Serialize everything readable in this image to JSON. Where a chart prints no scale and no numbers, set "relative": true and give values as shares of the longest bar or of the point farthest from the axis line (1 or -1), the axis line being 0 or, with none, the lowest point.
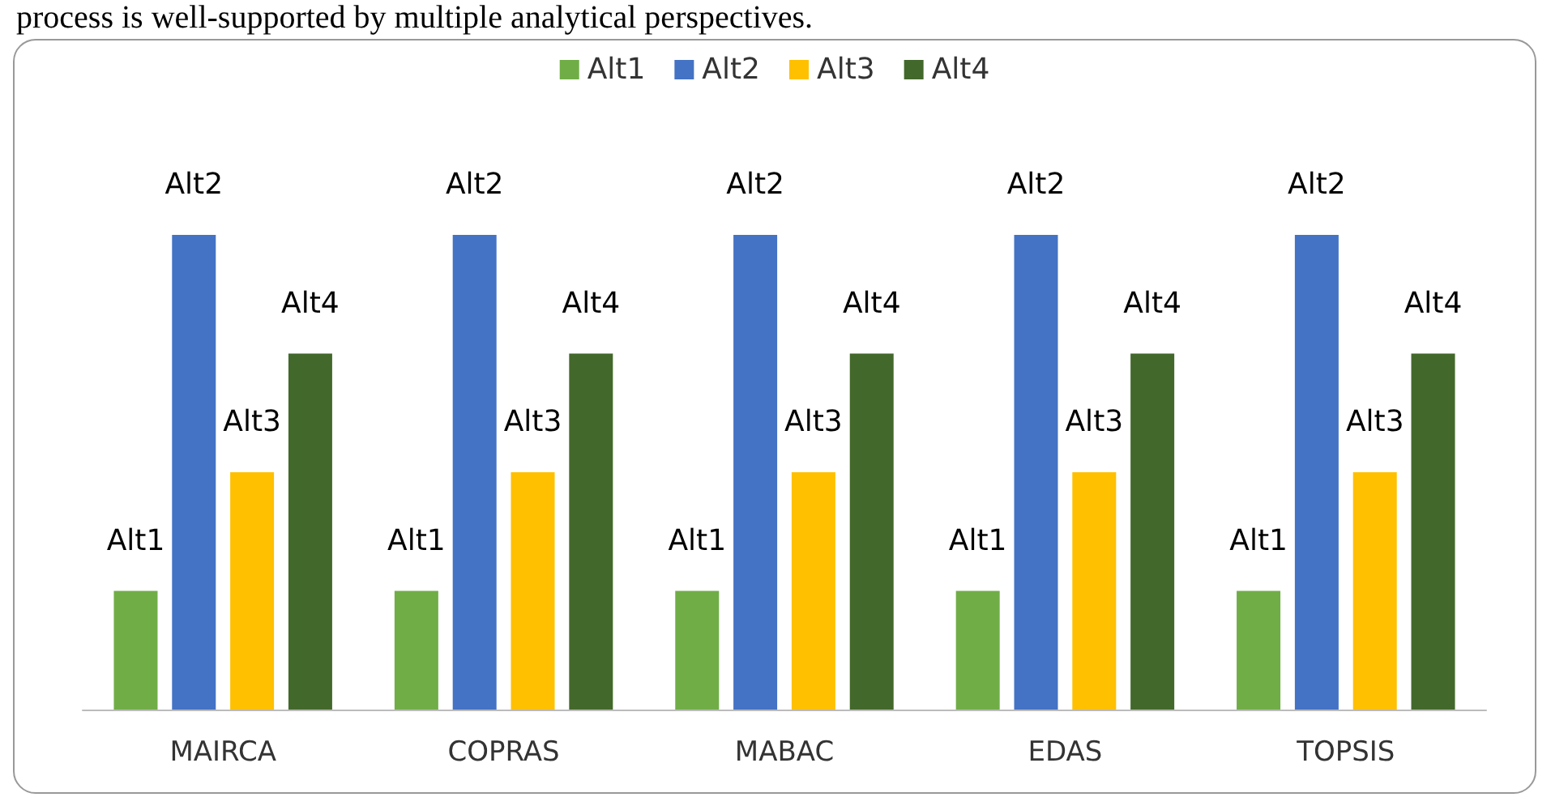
{
  "chart_data": {
    "type": "bar",
    "relative": true,
    "categories": [
      "MAIRCA",
      "COPRAS",
      "MABAC",
      "EDAS",
      "TOPSIS"
    ],
    "series": [
      {
        "name": "Alt1",
        "color": "#70ad47",
        "values": [
          0.25,
          0.25,
          0.25,
          0.25,
          0.25
        ]
      },
      {
        "name": "Alt2",
        "color": "#4472c4",
        "values": [
          1,
          1,
          1,
          1,
          1
        ]
      },
      {
        "name": "Alt3",
        "color": "#ffc000",
        "values": [
          0.5,
          0.5,
          0.5,
          0.5,
          0.5
        ]
      },
      {
        "name": "Alt4",
        "color": "#43682b",
        "values": [
          0.75,
          0.75,
          0.75,
          0.75,
          0.75
        ]
      }
    ],
    "legend": "top",
    "annotations": [
      "process is well-supported by multiple analytical perspectives."
    ]
  }
}
